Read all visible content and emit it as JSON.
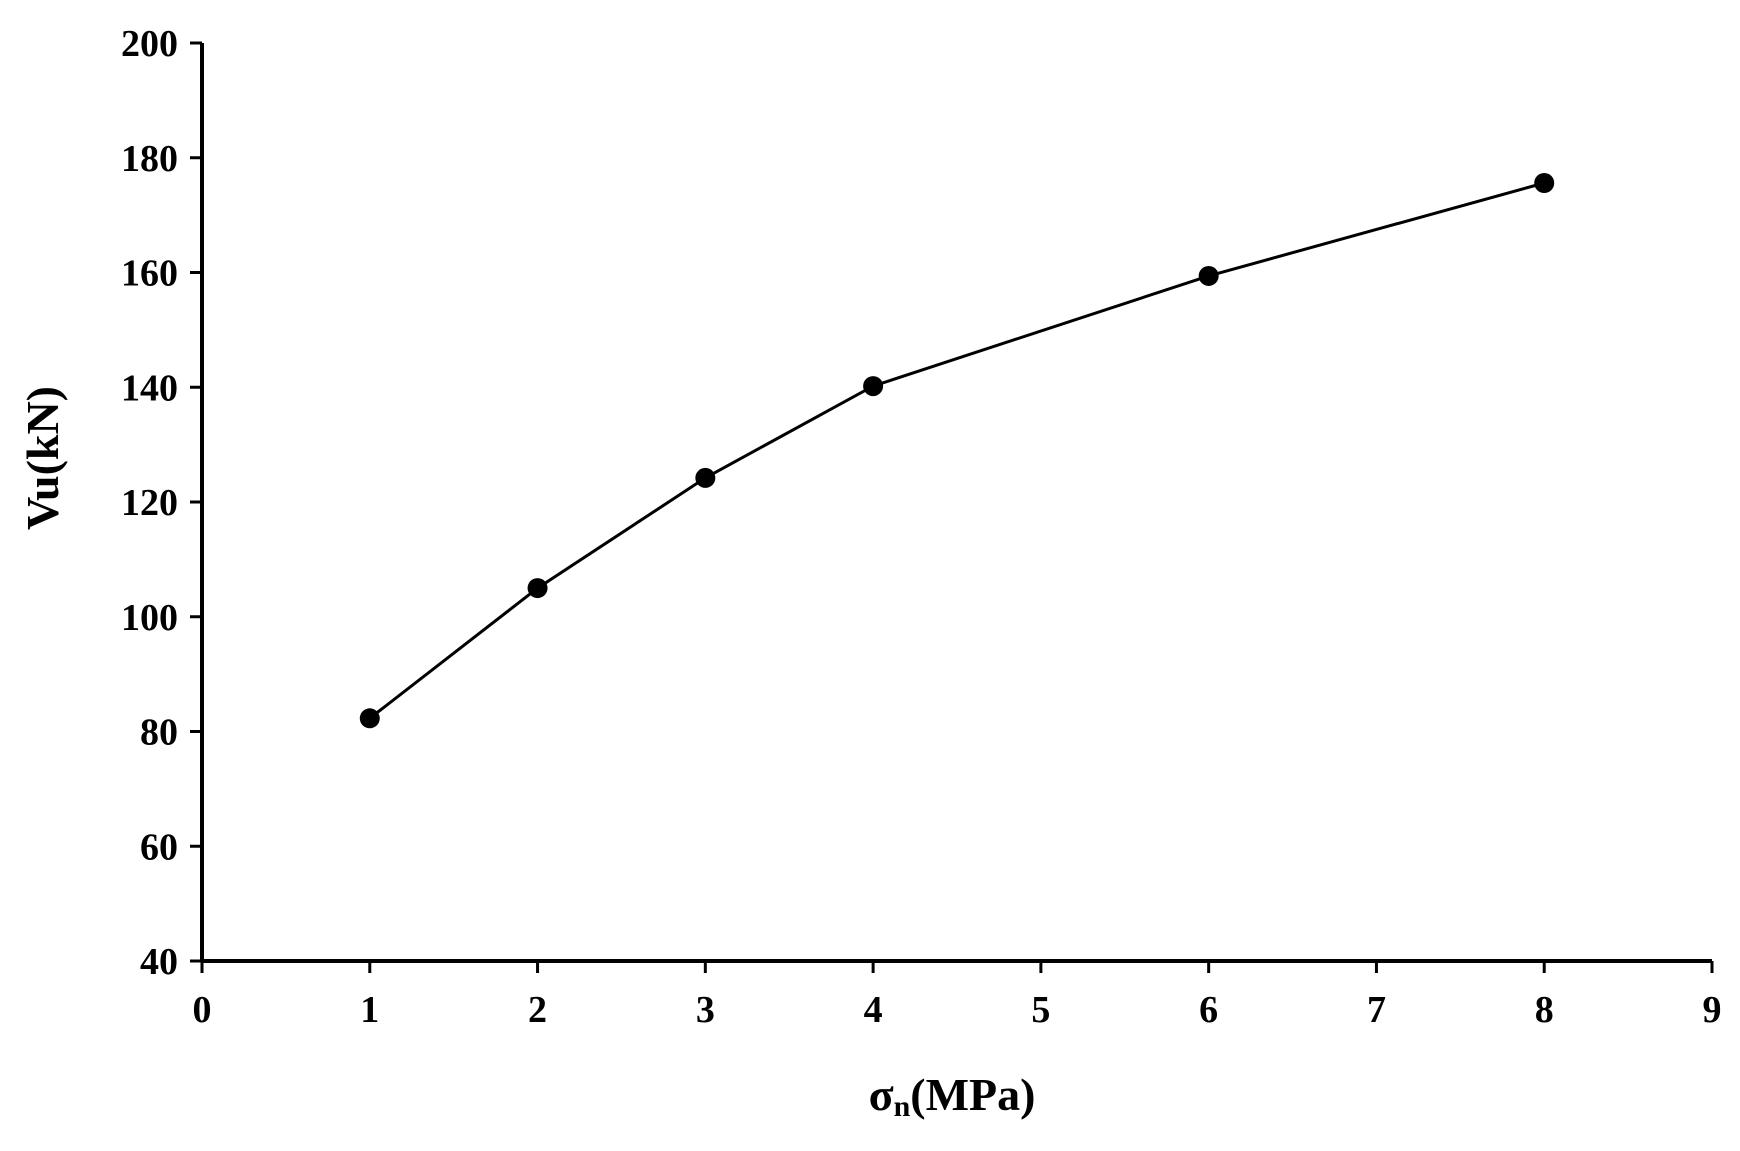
{
  "chart_data": {
    "type": "line",
    "xlabel_main": "σ",
    "xlabel_sub": "n",
    "xlabel_units": "(MPa)",
    "ylabel": "Vu(kN)",
    "xlim": [
      0,
      9
    ],
    "ylim": [
      40,
      200
    ],
    "x_ticks": [
      "0",
      "1",
      "2",
      "3",
      "4",
      "5",
      "6",
      "7",
      "8",
      "9"
    ],
    "y_ticks": [
      "40",
      "60",
      "80",
      "100",
      "120",
      "140",
      "160",
      "180",
      "200"
    ],
    "grid": false,
    "legend": "none",
    "series": [
      {
        "x": [
          1,
          2,
          3,
          4,
          6,
          8
        ],
        "y": [
          82.3,
          105,
          124.2,
          140.2,
          159.4,
          175.6
        ],
        "color": "#000000",
        "marker": "circle"
      }
    ]
  }
}
